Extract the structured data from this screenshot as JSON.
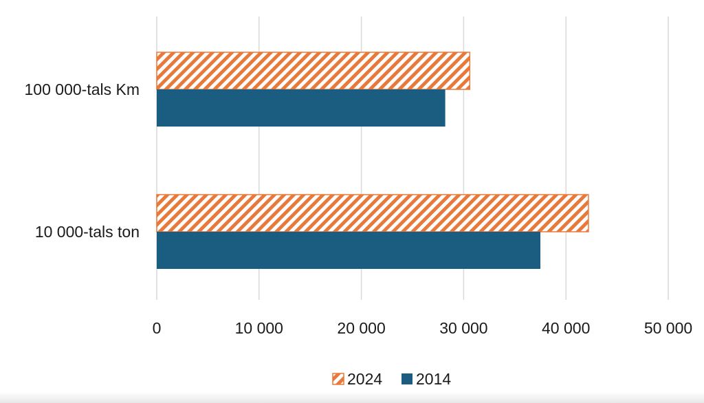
{
  "chart_data": {
    "type": "bar",
    "orientation": "horizontal",
    "categories": [
      "100 000-tals Km",
      "10 000-tals ton"
    ],
    "series": [
      {
        "name": "2024",
        "values": [
          30600,
          42200
        ],
        "color": "#e8793a",
        "pattern": "diagonal-hatch"
      },
      {
        "name": "2014",
        "values": [
          28200,
          37500
        ],
        "color": "#1a5d80",
        "pattern": "solid"
      }
    ],
    "xlim": [
      0,
      50000
    ],
    "xticks": [
      0,
      10000,
      20000,
      30000,
      40000,
      50000
    ],
    "xtick_labels": [
      "0",
      "10 000",
      "20 000",
      "30 000",
      "40 000",
      "50 000"
    ],
    "grid": "vertical",
    "legend_position": "bottom"
  }
}
